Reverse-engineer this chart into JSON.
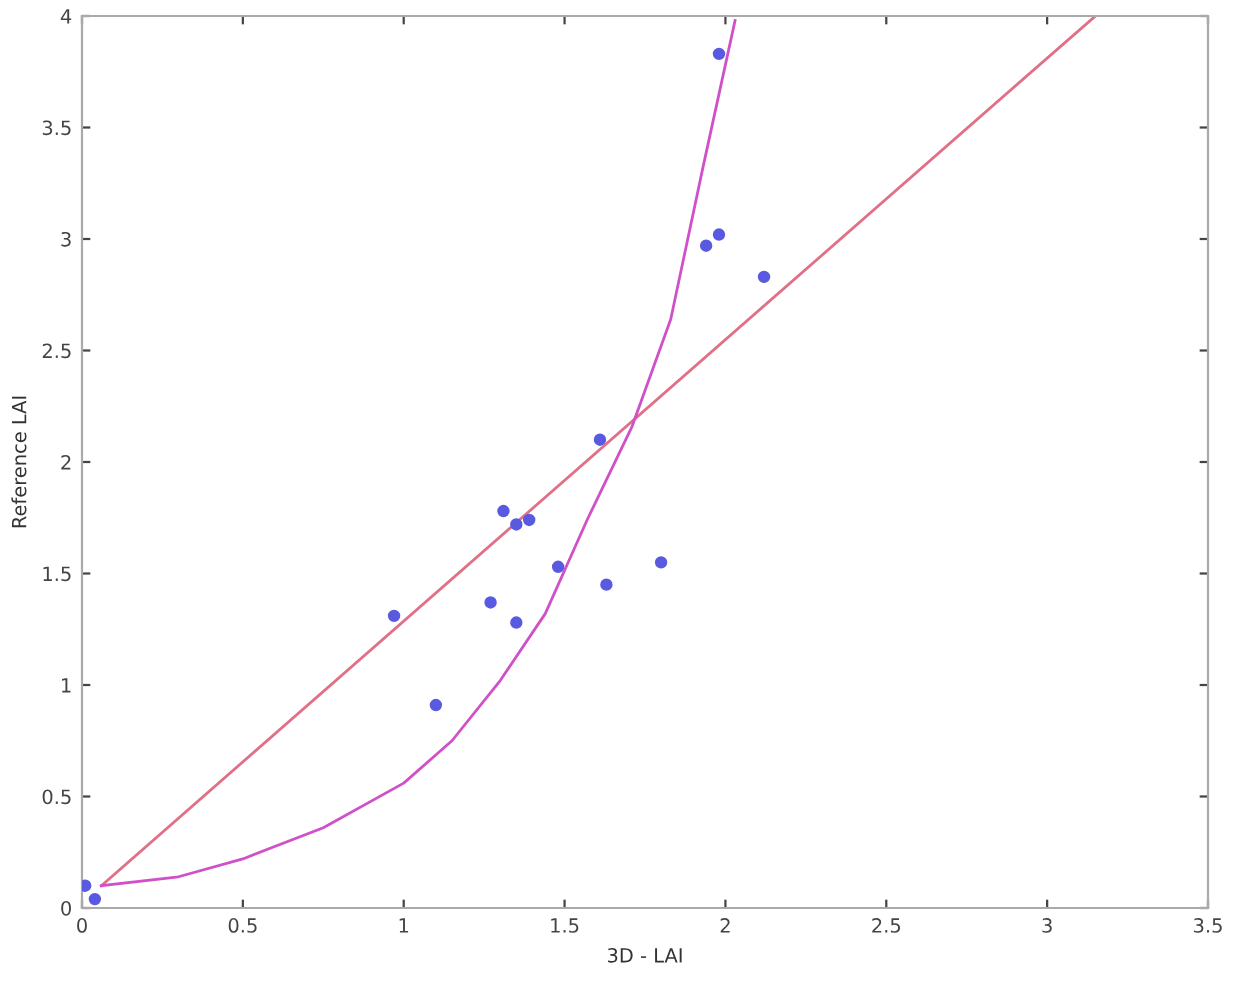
{
  "chart_data": {
    "type": "scatter",
    "xlabel": "3D - LAI",
    "ylabel": "Reference LAI",
    "xlim": [
      0,
      3.5
    ],
    "ylim": [
      0,
      4
    ],
    "xticks": [
      0,
      0.5,
      1,
      1.5,
      2,
      2.5,
      3,
      3.5
    ],
    "yticks": [
      0,
      0.5,
      1,
      1.5,
      2,
      2.5,
      3,
      3.5,
      4
    ],
    "grid": false,
    "series": [
      {
        "marker": "circle",
        "color": "#5a5ae0",
        "x": [
          1.61,
          1.31,
          1.35,
          1.39,
          1.48,
          1.8,
          1.63,
          1.27,
          1.35,
          0.97,
          1.1,
          1.98,
          1.98,
          1.94,
          2.12,
          0.01,
          0.04
        ],
        "values": [
          2.1,
          1.78,
          1.72,
          1.74,
          1.53,
          1.55,
          1.45,
          1.37,
          1.28,
          1.31,
          0.91,
          3.83,
          3.02,
          2.97,
          2.83,
          0.1,
          0.04
        ]
      },
      {
        "type": "line",
        "color": "#e07088",
        "x": [
          0.06,
          3.15
        ],
        "values": [
          0.1,
          4
        ]
      },
      {
        "type": "line",
        "color": "#d050c8",
        "x": [
          0.06,
          0.3,
          0.5,
          0.75,
          1.0,
          1.15,
          1.3,
          1.44,
          1.57,
          1.71,
          1.83,
          1.93,
          2.03
        ],
        "values": [
          0.1,
          0.14,
          0.22,
          0.36,
          0.56,
          0.75,
          1.02,
          1.32,
          1.74,
          2.16,
          2.64,
          3.32,
          3.98
        ]
      }
    ]
  }
}
